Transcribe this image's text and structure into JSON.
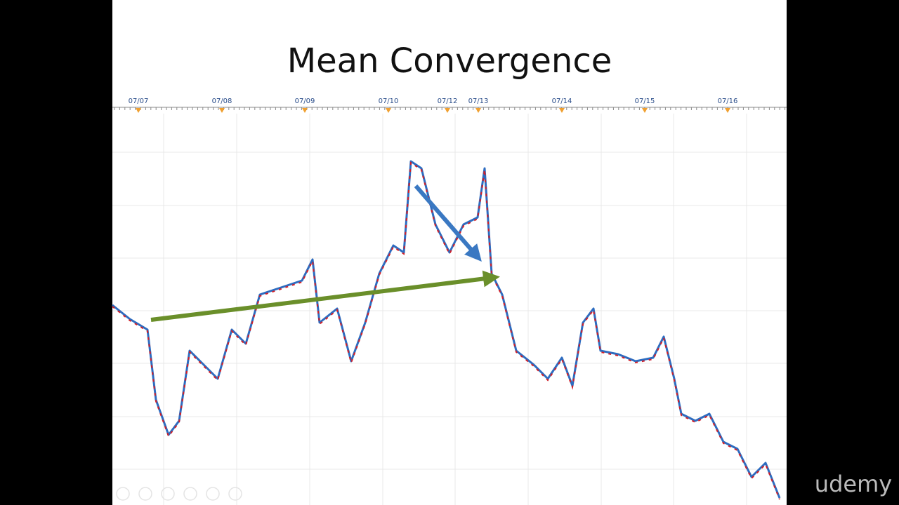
{
  "slide": {
    "title": "Mean Convergence",
    "dates": [
      "07/07",
      "07/08",
      "07/09",
      "07/10",
      "07/12",
      "07/13",
      "07/14",
      "07/15",
      "07/16"
    ],
    "watermark": "udemy"
  }
}
